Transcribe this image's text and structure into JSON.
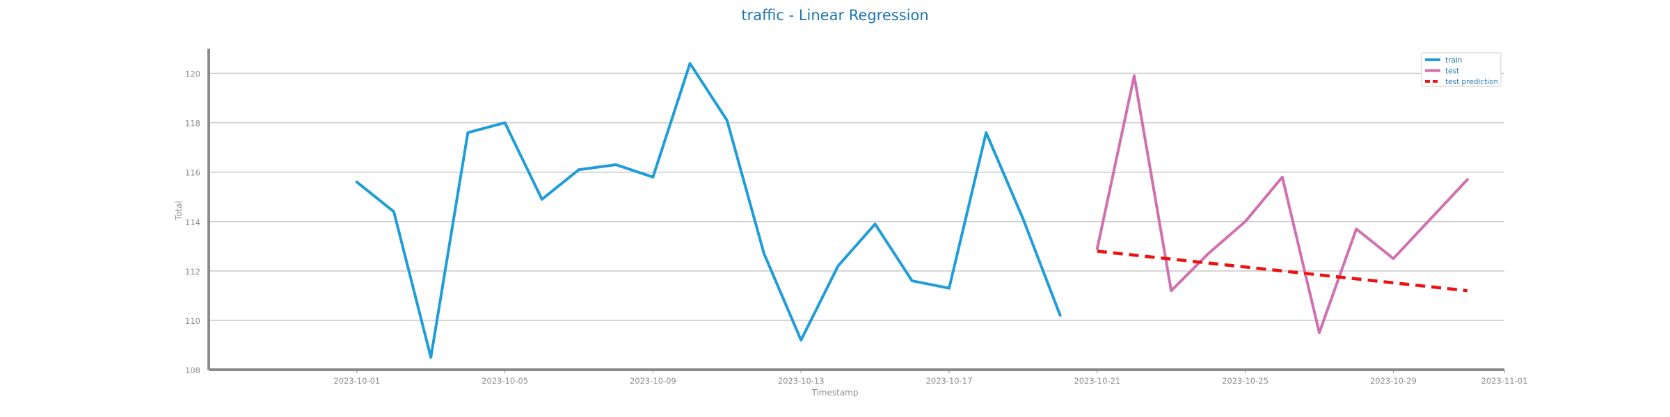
{
  "chart_data": {
    "type": "line",
    "title": "traffic - Linear Regression",
    "xlabel": "Timestamp",
    "ylabel": "Total",
    "x_range": [
      "2023-09-27",
      "2023-11-01"
    ],
    "ylim": [
      108,
      121
    ],
    "y_ticks": [
      108,
      110,
      112,
      114,
      116,
      118,
      120
    ],
    "x_ticks": [
      "2023-10-01",
      "2023-10-05",
      "2023-10-09",
      "2023-10-13",
      "2023-10-17",
      "2023-10-21",
      "2023-10-25",
      "2023-10-29",
      "2023-11-01"
    ],
    "grid": "horizontal",
    "legend_position": "top-right",
    "series": [
      {
        "name": "train",
        "color": "#1f9dd9",
        "style": "solid",
        "x": [
          "2023-10-01",
          "2023-10-02",
          "2023-10-03",
          "2023-10-04",
          "2023-10-05",
          "2023-10-06",
          "2023-10-07",
          "2023-10-08",
          "2023-10-09",
          "2023-10-10",
          "2023-10-11",
          "2023-10-12",
          "2023-10-13",
          "2023-10-14",
          "2023-10-15",
          "2023-10-16",
          "2023-10-17",
          "2023-10-18",
          "2023-10-19",
          "2023-10-20"
        ],
        "y": [
          115.6,
          114.4,
          108.5,
          117.6,
          118.0,
          114.9,
          116.1,
          116.3,
          115.8,
          120.4,
          118.1,
          112.7,
          109.2,
          112.2,
          113.9,
          111.6,
          111.3,
          117.6,
          114.1,
          110.2
        ]
      },
      {
        "name": "test",
        "color": "#d070b0",
        "style": "solid",
        "x": [
          "2023-10-21",
          "2023-10-22",
          "2023-10-23",
          "2023-10-24",
          "2023-10-25",
          "2023-10-26",
          "2023-10-27",
          "2023-10-28",
          "2023-10-29",
          "2023-10-30",
          "2023-10-31"
        ],
        "y": [
          112.9,
          119.9,
          111.2,
          112.7,
          114.0,
          115.8,
          109.5,
          113.7,
          112.5,
          114.1,
          115.7
        ]
      },
      {
        "name": "test prediction",
        "color": "#ee1111",
        "style": "dashed",
        "x": [
          "2023-10-21",
          "2023-10-31"
        ],
        "y": [
          112.8,
          111.2
        ]
      }
    ]
  }
}
